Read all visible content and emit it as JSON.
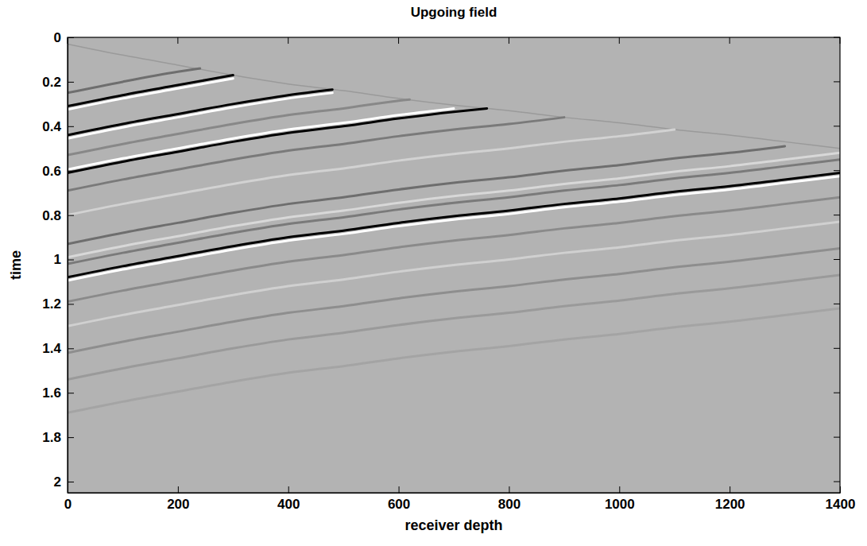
{
  "chart_data": {
    "type": "line",
    "title": "Upgoing field",
    "x_label": "receiver depth",
    "y_label": "time",
    "xlim": [
      0,
      1400
    ],
    "xticks": [
      0,
      200,
      400,
      600,
      800,
      1000,
      1200,
      1400
    ],
    "ylim": [
      0,
      2.05
    ],
    "yticks": [
      0,
      0.2,
      0.4,
      0.6,
      0.8,
      1,
      1.2,
      1.4,
      1.6,
      1.8,
      2
    ],
    "grid": false,
    "series": [
      {
        "color": "#9a9a9a",
        "x": [
          0,
          100,
          200,
          300,
          400,
          500,
          600,
          700,
          800,
          900,
          1000,
          1100,
          1200,
          1300,
          1400
        ],
        "values": [
          0.03,
          0.08,
          0.125,
          0.17,
          0.21,
          0.24,
          0.275,
          0.305,
          0.33,
          0.36,
          0.385,
          0.415,
          0.44,
          0.47,
          0.5
        ]
      },
      {
        "color": "#6e6e6e",
        "x": [
          0,
          100,
          200,
          240
        ],
        "values": [
          0.25,
          0.2,
          0.155,
          0.14
        ]
      },
      {
        "color": "#000000",
        "x": [
          0,
          100,
          200,
          300
        ],
        "values": [
          0.31,
          0.26,
          0.215,
          0.17
        ]
      },
      {
        "color": "#ffffff",
        "x": [
          0,
          100,
          200,
          300
        ],
        "values": [
          0.325,
          0.275,
          0.23,
          0.185
        ]
      },
      {
        "color": "#000000",
        "x": [
          0,
          100,
          200,
          300,
          400,
          480
        ],
        "values": [
          0.44,
          0.39,
          0.345,
          0.3,
          0.26,
          0.235
        ]
      },
      {
        "color": "#ffffff",
        "x": [
          0,
          100,
          200,
          300,
          400,
          480
        ],
        "values": [
          0.455,
          0.405,
          0.36,
          0.315,
          0.275,
          0.25
        ]
      },
      {
        "color": "#888888",
        "x": [
          0,
          100,
          200,
          300,
          400,
          500,
          600,
          620
        ],
        "values": [
          0.53,
          0.48,
          0.435,
          0.39,
          0.35,
          0.32,
          0.285,
          0.28
        ]
      },
      {
        "color": "#ffffff",
        "x": [
          0,
          100,
          200,
          300,
          400,
          500,
          600,
          700
        ],
        "values": [
          0.595,
          0.545,
          0.5,
          0.455,
          0.415,
          0.385,
          0.35,
          0.32
        ]
      },
      {
        "color": "#000000",
        "x": [
          0,
          100,
          200,
          300,
          400,
          500,
          600,
          700,
          760
        ],
        "values": [
          0.61,
          0.56,
          0.515,
          0.47,
          0.43,
          0.4,
          0.365,
          0.335,
          0.32
        ]
      },
      {
        "color": "#7a7a7a",
        "x": [
          0,
          100,
          200,
          300,
          400,
          500,
          600,
          700,
          800,
          900
        ],
        "values": [
          0.69,
          0.64,
          0.595,
          0.55,
          0.51,
          0.48,
          0.445,
          0.415,
          0.39,
          0.36
        ]
      },
      {
        "color": "#d2d2d2",
        "x": [
          0,
          100,
          200,
          300,
          400,
          500,
          600,
          700,
          800,
          900,
          1000,
          1100
        ],
        "values": [
          0.8,
          0.75,
          0.705,
          0.66,
          0.62,
          0.59,
          0.555,
          0.525,
          0.5,
          0.47,
          0.445,
          0.415
        ]
      },
      {
        "color": "#6e6e6e",
        "x": [
          0,
          100,
          200,
          300,
          400,
          500,
          600,
          700,
          800,
          900,
          1000,
          1100,
          1200,
          1300
        ],
        "values": [
          0.93,
          0.88,
          0.835,
          0.79,
          0.75,
          0.72,
          0.685,
          0.655,
          0.63,
          0.6,
          0.575,
          0.545,
          0.52,
          0.49
        ]
      },
      {
        "color": "#d8d8d8",
        "x": [
          0,
          100,
          200,
          300,
          400,
          500,
          600,
          700,
          800,
          900,
          1000,
          1100,
          1200,
          1300,
          1400
        ],
        "values": [
          0.99,
          0.94,
          0.895,
          0.85,
          0.81,
          0.78,
          0.745,
          0.715,
          0.69,
          0.66,
          0.635,
          0.605,
          0.58,
          0.55,
          0.52
        ]
      },
      {
        "color": "#7a7a7a",
        "x": [
          0,
          100,
          200,
          300,
          400,
          500,
          600,
          700,
          800,
          900,
          1000,
          1100,
          1200,
          1300,
          1400
        ],
        "values": [
          1.02,
          0.97,
          0.925,
          0.88,
          0.84,
          0.81,
          0.775,
          0.745,
          0.72,
          0.69,
          0.665,
          0.635,
          0.61,
          0.58,
          0.55
        ]
      },
      {
        "color": "#000000",
        "x": [
          0,
          100,
          200,
          300,
          400,
          500,
          600,
          700,
          800,
          900,
          1000,
          1100,
          1200,
          1300,
          1400
        ],
        "values": [
          1.08,
          1.03,
          0.985,
          0.94,
          0.9,
          0.87,
          0.835,
          0.805,
          0.78,
          0.75,
          0.725,
          0.695,
          0.67,
          0.64,
          0.61
        ]
      },
      {
        "color": "#ffffff",
        "x": [
          0,
          100,
          200,
          300,
          400,
          500,
          600,
          700,
          800,
          900,
          1000,
          1100,
          1200,
          1300,
          1400
        ],
        "values": [
          1.095,
          1.045,
          1.0,
          0.955,
          0.915,
          0.885,
          0.85,
          0.82,
          0.795,
          0.765,
          0.74,
          0.71,
          0.685,
          0.655,
          0.625
        ]
      },
      {
        "color": "#8a8a8a",
        "x": [
          0,
          100,
          200,
          300,
          400,
          500,
          600,
          700,
          800,
          900,
          1000,
          1100,
          1200,
          1300,
          1400
        ],
        "values": [
          1.19,
          1.14,
          1.095,
          1.05,
          1.01,
          0.98,
          0.945,
          0.915,
          0.89,
          0.86,
          0.835,
          0.805,
          0.78,
          0.75,
          0.72
        ]
      },
      {
        "color": "#d0d0d0",
        "x": [
          0,
          100,
          200,
          300,
          400,
          500,
          600,
          700,
          800,
          900,
          1000,
          1100,
          1200,
          1300,
          1400
        ],
        "values": [
          1.3,
          1.25,
          1.205,
          1.16,
          1.12,
          1.09,
          1.055,
          1.025,
          1.0,
          0.97,
          0.945,
          0.915,
          0.89,
          0.86,
          0.83
        ]
      },
      {
        "color": "#8e8e8e",
        "x": [
          0,
          100,
          200,
          300,
          400,
          500,
          600,
          700,
          800,
          900,
          1000,
          1100,
          1200,
          1300,
          1400
        ],
        "values": [
          1.42,
          1.37,
          1.325,
          1.28,
          1.24,
          1.21,
          1.175,
          1.145,
          1.12,
          1.09,
          1.065,
          1.035,
          1.01,
          0.98,
          0.95
        ]
      },
      {
        "color": "#9a9a9a",
        "x": [
          0,
          100,
          200,
          300,
          400,
          500,
          600,
          700,
          800,
          900,
          1000,
          1100,
          1200,
          1300,
          1400
        ],
        "values": [
          1.54,
          1.49,
          1.445,
          1.4,
          1.36,
          1.33,
          1.295,
          1.265,
          1.24,
          1.21,
          1.185,
          1.155,
          1.13,
          1.1,
          1.07
        ]
      },
      {
        "color": "#a4a4a4",
        "x": [
          0,
          100,
          200,
          300,
          400,
          500,
          600,
          700,
          800,
          900,
          1000,
          1100,
          1200,
          1300,
          1400
        ],
        "values": [
          1.69,
          1.64,
          1.595,
          1.55,
          1.51,
          1.48,
          1.445,
          1.415,
          1.39,
          1.36,
          1.335,
          1.305,
          1.28,
          1.25,
          1.22
        ]
      }
    ]
  }
}
